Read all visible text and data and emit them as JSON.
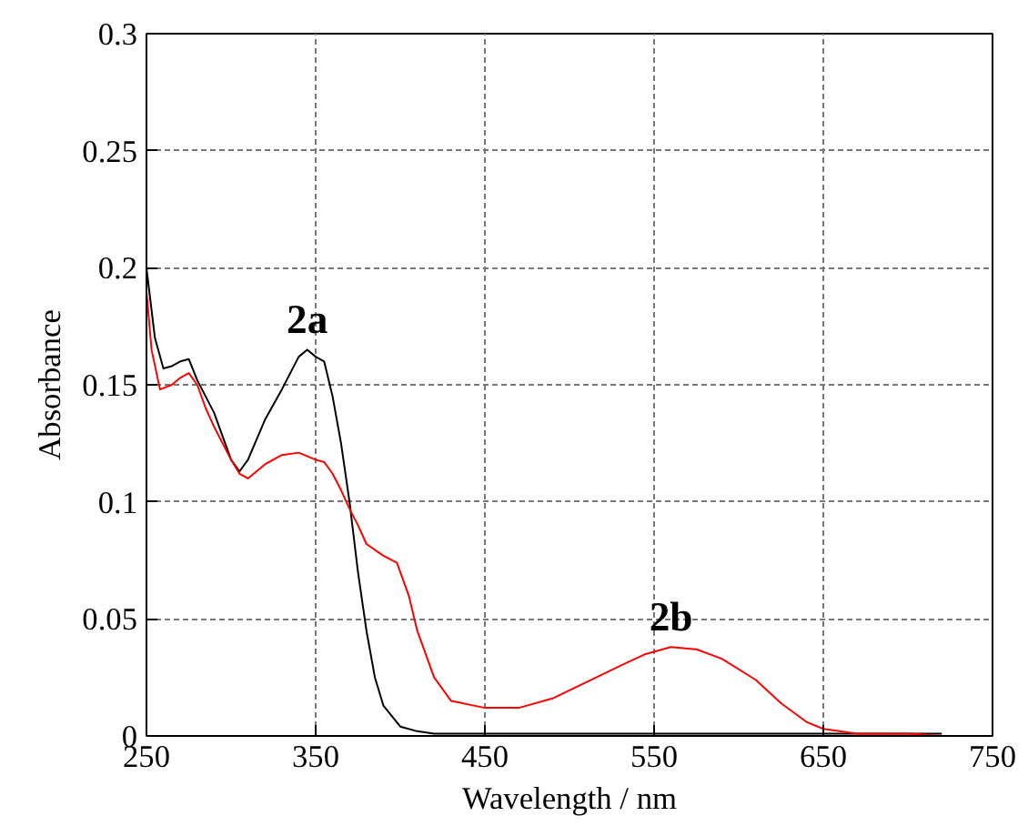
{
  "chart_data": {
    "type": "line",
    "xlabel": "Wavelength / nm",
    "ylabel": "Absorbance",
    "xlim": [
      250,
      750
    ],
    "ylim": [
      0,
      0.3
    ],
    "xticks": [
      250,
      350,
      450,
      550,
      650,
      750
    ],
    "yticks": [
      0,
      0.05,
      0.1,
      0.15,
      0.2,
      0.25,
      0.3
    ],
    "grid": true,
    "line_style": "solid",
    "marker": "none",
    "annotations": [
      "2a",
      "2b"
    ],
    "series": [
      {
        "color": "#000000",
        "x": [
          250,
          255,
          260,
          265,
          270,
          275,
          280,
          290,
          300,
          305,
          310,
          320,
          330,
          340,
          345,
          350,
          355,
          360,
          365,
          370,
          375,
          380,
          385,
          390,
          400,
          410,
          420,
          450,
          500,
          550,
          600,
          650,
          700,
          720
        ],
        "values": [
          0.2,
          0.17,
          0.157,
          0.158,
          0.16,
          0.161,
          0.152,
          0.138,
          0.118,
          0.113,
          0.118,
          0.135,
          0.148,
          0.162,
          0.165,
          0.162,
          0.16,
          0.145,
          0.125,
          0.1,
          0.07,
          0.045,
          0.025,
          0.013,
          0.004,
          0.002,
          0.001,
          0.001,
          0.001,
          0.001,
          0.001,
          0.001,
          0.001,
          0.001
        ]
      },
      {
        "color": "#ff0000",
        "x": [
          250,
          253,
          258,
          265,
          270,
          275,
          280,
          285,
          290,
          300,
          305,
          310,
          320,
          330,
          340,
          350,
          355,
          360,
          365,
          370,
          375,
          380,
          390,
          398,
          405,
          410,
          420,
          430,
          450,
          470,
          490,
          510,
          530,
          545,
          560,
          575,
          590,
          610,
          625,
          640,
          650,
          670,
          700,
          720
        ],
        "values": [
          0.19,
          0.165,
          0.148,
          0.15,
          0.153,
          0.155,
          0.15,
          0.14,
          0.132,
          0.118,
          0.112,
          0.11,
          0.116,
          0.12,
          0.121,
          0.118,
          0.117,
          0.112,
          0.105,
          0.097,
          0.09,
          0.082,
          0.077,
          0.074,
          0.06,
          0.045,
          0.025,
          0.015,
          0.012,
          0.012,
          0.016,
          0.023,
          0.03,
          0.035,
          0.038,
          0.037,
          0.033,
          0.024,
          0.014,
          0.006,
          0.003,
          0.001,
          0.001,
          0.0
        ]
      }
    ]
  }
}
